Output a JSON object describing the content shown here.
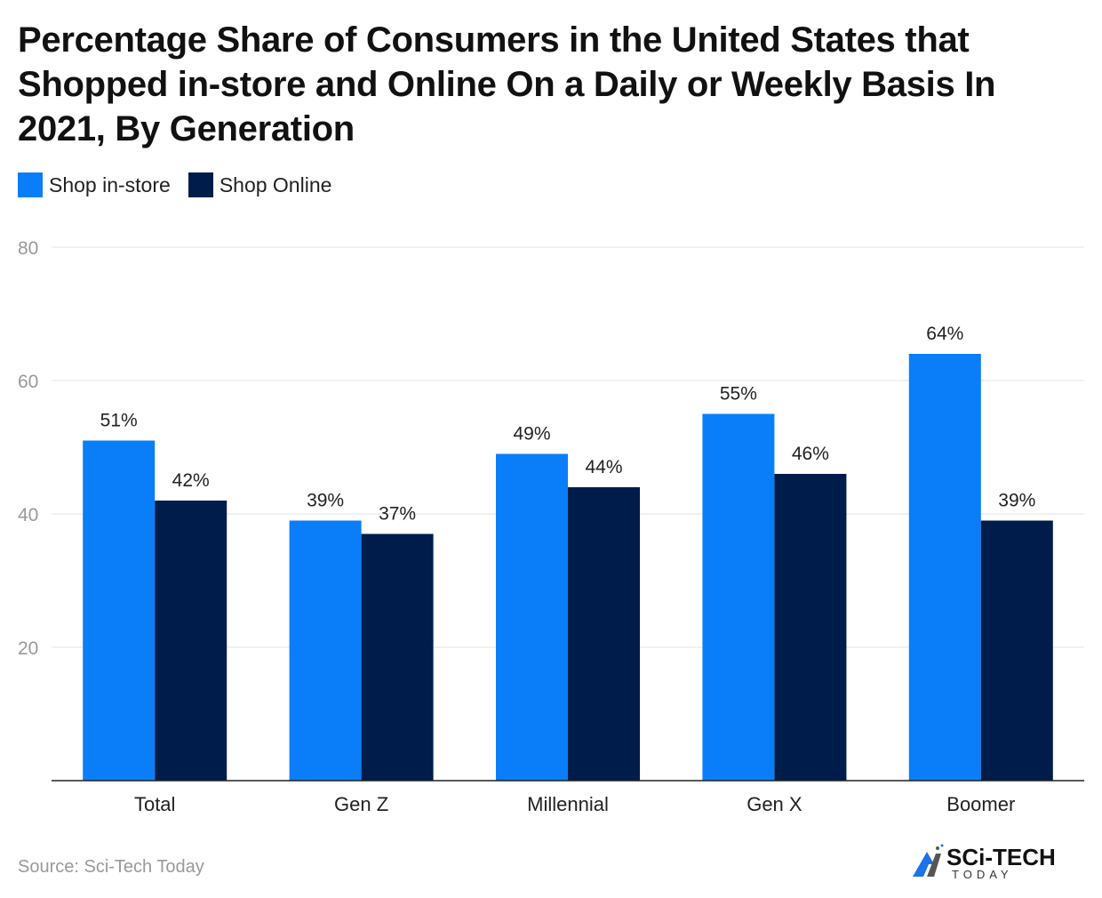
{
  "chart_data": {
    "type": "bar",
    "title": "Percentage Share of Consumers in the United States that Shopped in-store and Online On a Daily or Weekly Basis In 2021, By Generation",
    "categories": [
      "Total",
      "Gen Z",
      "Millennial",
      "Gen X",
      "Boomer"
    ],
    "series": [
      {
        "name": "Shop in-store",
        "color": "#0a7ef9",
        "values": [
          51,
          39,
          49,
          55,
          64
        ],
        "labels": [
          "51%",
          "39%",
          "49%",
          "55%",
          "64%"
        ]
      },
      {
        "name": "Shop Online",
        "color": "#001c4a",
        "values": [
          42,
          37,
          44,
          46,
          39
        ],
        "labels": [
          "42%",
          "37%",
          "44%",
          "46%",
          "39%"
        ]
      }
    ],
    "ylim": [
      0,
      80
    ],
    "yticks": [
      20,
      40,
      60,
      80
    ],
    "grid": true,
    "legend": "top-left",
    "xlabel": "",
    "ylabel": ""
  },
  "source": "Source: Sci-Tech Today",
  "logo": {
    "text": "SCI-TECH",
    "subtext": "TODAY"
  }
}
